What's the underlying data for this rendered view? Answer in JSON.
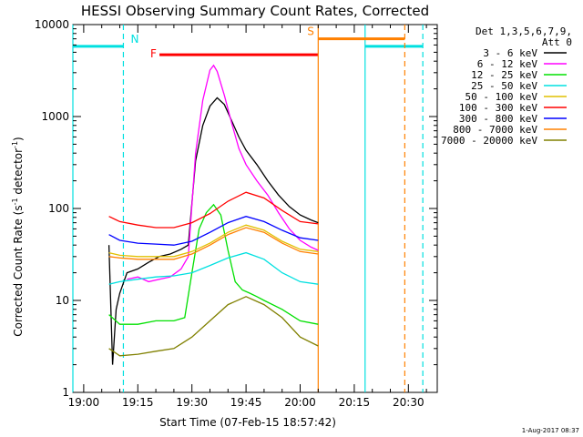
{
  "chart_data": {
    "type": "line",
    "title": "HESSI Observing Summary Count Rates, Corrected",
    "xlabel": "Start Time (07-Feb-15 18:57:42)",
    "ylabel": "Corrected Count Rate (s",
    "ylabel_sup1": "-1",
    "ylabel_mid": " detector",
    "ylabel_sup2": "-1",
    "ylabel_end": ")",
    "y_scale": "log",
    "xlim": [
      "18:57:00",
      "20:38:00"
    ],
    "ylim": [
      1,
      10000
    ],
    "x_tick_labels": [
      "19:00",
      "19:15",
      "19:30",
      "19:45",
      "20:00",
      "20:15",
      "20:30"
    ],
    "x_tick_values": [
      "19:00",
      "19:15",
      "19:30",
      "19:45",
      "20:00",
      "20:15",
      "20:30"
    ],
    "y_tick_labels": [
      "1",
      "10",
      "100",
      "1000",
      "10000"
    ],
    "y_tick_values": [
      1,
      10,
      100,
      1000,
      10000
    ],
    "legend_header": [
      "Det 1,3,5,6,7,9,",
      "Att 0"
    ],
    "legend_position": "top-right",
    "footer_stamp": "1-Aug-2017 08:37",
    "annotations": [
      {
        "label": "N",
        "type": "night",
        "color": "#00e0e0",
        "bars": [
          [
            "18:57:00",
            "19:11:00"
          ],
          [
            "20:18:00",
            "20:34:00"
          ]
        ],
        "level": 5800,
        "dashed_lines": [
          "19:11:00",
          "20:34:00"
        ],
        "solid_lines": [
          "18:57:00",
          "20:18:00"
        ]
      },
      {
        "label": "F",
        "type": "flare",
        "color": "#ff0000",
        "bars": [
          [
            "19:21:00",
            "20:05:00"
          ]
        ],
        "level": 4700
      },
      {
        "label": "S",
        "type": "saa",
        "color": "#ff8000",
        "bars": [
          [
            "20:05:00",
            "20:29:00"
          ]
        ],
        "level": 7000,
        "dashed_lines": [
          "20:29:00"
        ],
        "solid_lines": [
          "20:05:00"
        ]
      }
    ],
    "series": [
      {
        "name": "3 - 6 keV",
        "color": "#000000",
        "x": [
          "19:07",
          "19:08",
          "19:09",
          "19:10",
          "19:12",
          "19:15",
          "19:18",
          "19:21",
          "19:24",
          "19:27",
          "19:29",
          "19:31",
          "19:33",
          "19:35",
          "19:37",
          "19:39",
          "19:41",
          "19:43",
          "19:45",
          "19:48",
          "19:51",
          "19:54",
          "19:57",
          "20:00",
          "20:03",
          "20:05"
        ],
        "y": [
          40,
          2,
          8,
          12,
          20,
          22,
          26,
          30,
          32,
          36,
          40,
          330,
          800,
          1300,
          1600,
          1350,
          900,
          600,
          430,
          300,
          200,
          140,
          105,
          85,
          75,
          70
        ]
      },
      {
        "name": "6 - 12 keV",
        "color": "#ff00ff",
        "x": [
          "19:12",
          "19:15",
          "19:18",
          "19:21",
          "19:24",
          "19:27",
          "19:29",
          "19:31",
          "19:33",
          "19:35",
          "19:36",
          "19:37",
          "19:39",
          "19:41",
          "19:43",
          "19:45",
          "19:48",
          "19:51",
          "19:54",
          "19:57",
          "20:00",
          "20:03",
          "20:05"
        ],
        "y": [
          17,
          18,
          16,
          17,
          18,
          22,
          30,
          400,
          1500,
          3200,
          3600,
          3100,
          1700,
          850,
          450,
          300,
          200,
          140,
          90,
          60,
          45,
          38,
          35
        ]
      },
      {
        "name": "12 - 25 keV",
        "color": "#00e000",
        "x": [
          "19:07",
          "19:10",
          "19:15",
          "19:20",
          "19:25",
          "19:28",
          "19:30",
          "19:32",
          "19:34",
          "19:36",
          "19:38",
          "19:40",
          "19:42",
          "19:44",
          "19:46",
          "19:48",
          "19:50",
          "19:55",
          "20:00",
          "20:05"
        ],
        "y": [
          7,
          5.5,
          5.5,
          6,
          6,
          6.5,
          20,
          60,
          90,
          110,
          85,
          35,
          16,
          13,
          12,
          11,
          10,
          8,
          6,
          5.5
        ]
      },
      {
        "name": "25 - 50 keV",
        "color": "#00e0e0",
        "x": [
          "19:07",
          "19:10",
          "19:15",
          "19:20",
          "19:25",
          "19:30",
          "19:35",
          "19:40",
          "19:45",
          "19:50",
          "19:55",
          "20:00",
          "20:05"
        ],
        "y": [
          15,
          16,
          17,
          18,
          18.5,
          20,
          24,
          29,
          33,
          28,
          20,
          16,
          15
        ]
      },
      {
        "name": "50 - 100 keV",
        "color": "#e0c000",
        "x": [
          "19:07",
          "19:10",
          "19:15",
          "19:20",
          "19:25",
          "19:30",
          "19:35",
          "19:40",
          "19:45",
          "19:50",
          "19:55",
          "20:00",
          "20:05"
        ],
        "y": [
          33,
          31,
          30,
          30,
          30,
          34,
          42,
          55,
          66,
          58,
          44,
          36,
          34
        ]
      },
      {
        "name": "100 - 300 keV",
        "color": "#ff0000",
        "x": [
          "19:07",
          "19:10",
          "19:15",
          "19:20",
          "19:25",
          "19:30",
          "19:35",
          "19:40",
          "19:45",
          "19:50",
          "19:55",
          "20:00",
          "20:05"
        ],
        "y": [
          82,
          72,
          66,
          62,
          62,
          70,
          88,
          120,
          150,
          130,
          95,
          72,
          68
        ]
      },
      {
        "name": "300 - 800 keV",
        "color": "#0000ff",
        "x": [
          "19:07",
          "19:10",
          "19:15",
          "19:20",
          "19:25",
          "19:30",
          "19:35",
          "19:40",
          "19:45",
          "19:50",
          "19:55",
          "20:00",
          "20:05"
        ],
        "y": [
          52,
          45,
          42,
          41,
          40,
          44,
          55,
          70,
          82,
          72,
          58,
          48,
          45
        ]
      },
      {
        "name": "800 - 7000 keV",
        "color": "#ff8000",
        "x": [
          "19:07",
          "19:10",
          "19:15",
          "19:20",
          "19:25",
          "19:30",
          "19:35",
          "19:40",
          "19:45",
          "19:50",
          "19:55",
          "20:00",
          "20:05"
        ],
        "y": [
          30,
          29,
          28,
          28,
          28,
          32,
          40,
          52,
          62,
          55,
          42,
          34,
          32
        ]
      },
      {
        "name": "7000 - 20000 keV",
        "color": "#808000",
        "x": [
          "19:07",
          "19:10",
          "19:15",
          "19:20",
          "19:25",
          "19:30",
          "19:35",
          "19:40",
          "19:45",
          "19:50",
          "19:55",
          "20:00",
          "20:05"
        ],
        "y": [
          3,
          2.5,
          2.6,
          2.8,
          3,
          4,
          6,
          9,
          11,
          9,
          6.5,
          4,
          3.2
        ]
      }
    ]
  }
}
